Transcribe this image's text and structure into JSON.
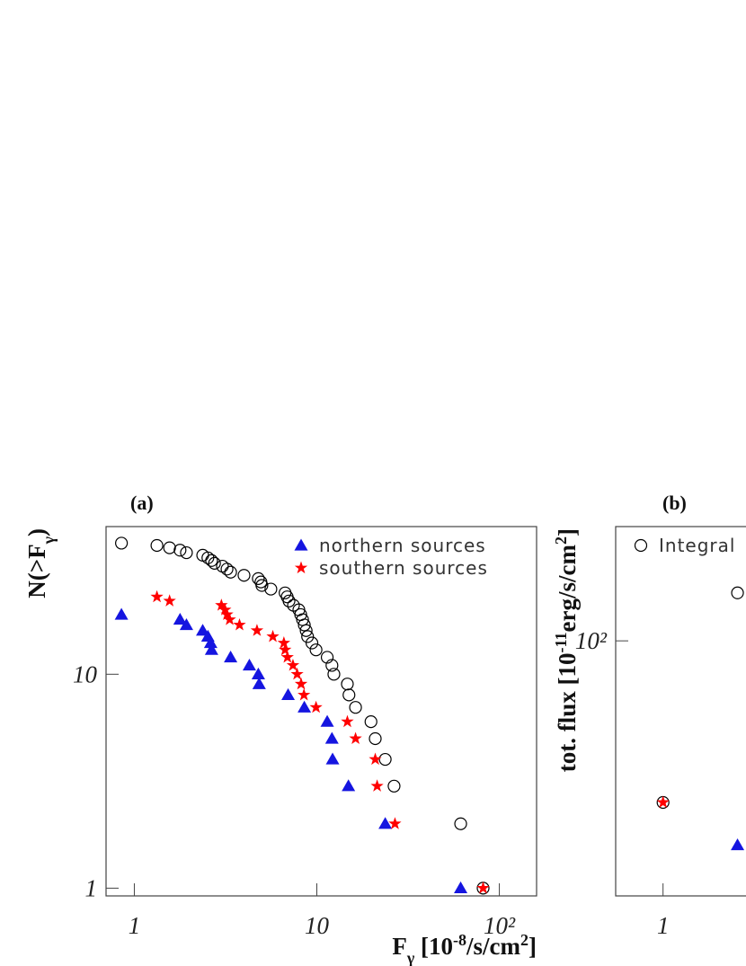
{
  "chart_data": [
    {
      "type": "scatter",
      "title": "(a)",
      "xlabel": [
        "F",
        "γ",
        " [10",
        "-8",
        "/s/cm",
        "2",
        "]"
      ],
      "ylabel": [
        "N(>F",
        "γ",
        ")"
      ],
      "log_x": true,
      "log_y": true,
      "xlim": [
        0.7,
        160
      ],
      "ylim": [
        0.92,
        49
      ],
      "xticks": [
        1,
        10,
        {
          "value": 100,
          "label": "10²"
        }
      ],
      "yticks": [
        1,
        10
      ],
      "legend": "top-right",
      "series": [
        {
          "marker": "circle",
          "color": "#000000",
          "x": [
            0.85,
            1.33,
            1.56,
            1.78,
            1.93,
            2.37,
            2.53,
            2.65,
            2.75,
            3.04,
            3.22,
            3.37,
            3.99,
            4.78,
            4.94,
            5.0,
            5.6,
            6.7,
            6.88,
            7.04,
            7.45,
            7.97,
            8.16,
            8.35,
            8.54,
            8.74,
            8.9,
            9.4,
            9.9,
            11.4,
            12.1,
            12.4,
            14.7,
            15.0,
            16.3,
            19.8,
            20.9,
            23.7,
            26.5,
            61.4,
            81.5
          ],
          "values": [
            41,
            40,
            39,
            38,
            37,
            36,
            35,
            34,
            33,
            32,
            31,
            30,
            29,
            28,
            27,
            26,
            25,
            24,
            23,
            22,
            21,
            20,
            19,
            18,
            17,
            16,
            15,
            14,
            13,
            12,
            11,
            10,
            9,
            8,
            7,
            6,
            5,
            4,
            3,
            2,
            1
          ]
        },
        {
          "name": "northern sources",
          "marker": "triangle",
          "color": "#1515e0",
          "x": [
            0.85,
            1.78,
            1.93,
            2.37,
            2.53,
            2.62,
            2.65,
            3.37,
            4.27,
            4.78,
            4.83,
            6.96,
            8.54,
            11.4,
            12.1,
            12.2,
            14.9,
            23.7,
            61.4
          ],
          "values": [
            19,
            18,
            17,
            16,
            15,
            14,
            13,
            12,
            11,
            10,
            9,
            8,
            7,
            6,
            5,
            4,
            3,
            2,
            1
          ]
        },
        {
          "name": "southern sources",
          "marker": "star",
          "color": "#ff0000",
          "x": [
            1.33,
            1.56,
            3.0,
            3.14,
            3.22,
            3.33,
            3.77,
            4.7,
            5.74,
            6.6,
            6.7,
            6.9,
            7.4,
            7.8,
            8.2,
            8.5,
            9.9,
            14.7,
            16.3,
            20.9,
            21.4,
            26.8,
            81.5
          ],
          "values": [
            23,
            22,
            21,
            20,
            19,
            18,
            17,
            16,
            15,
            14,
            13,
            12,
            11,
            10,
            9,
            8,
            7,
            6,
            5,
            4,
            3,
            2,
            1
          ]
        }
      ]
    },
    {
      "type": "scatter",
      "title": "(b)",
      "ylabel": [
        "tot. flux [10",
        "-11",
        "erg/s/cm",
        "2",
        "]"
      ],
      "log_x": true,
      "log_y": true,
      "xlim": [
        0.55,
        126
      ],
      "ylim": [
        19.5,
        208
      ],
      "xticks": [
        1
      ],
      "yticks": [
        {
          "value": 100,
          "label": "10²"
        }
      ],
      "legend": "top-left",
      "series": [
        {
          "name": "Integral",
          "marker": "circle",
          "color": "#000000",
          "x": [
            1,
            2.56
          ],
          "values": [
            35.5,
            136
          ]
        },
        {
          "marker": "star",
          "color": "#ff0000",
          "x": [
            1
          ],
          "values": [
            35.5
          ]
        },
        {
          "marker": "triangle",
          "color": "#1515e0",
          "x": [
            2.56
          ],
          "values": [
            27
          ]
        }
      ]
    }
  ]
}
